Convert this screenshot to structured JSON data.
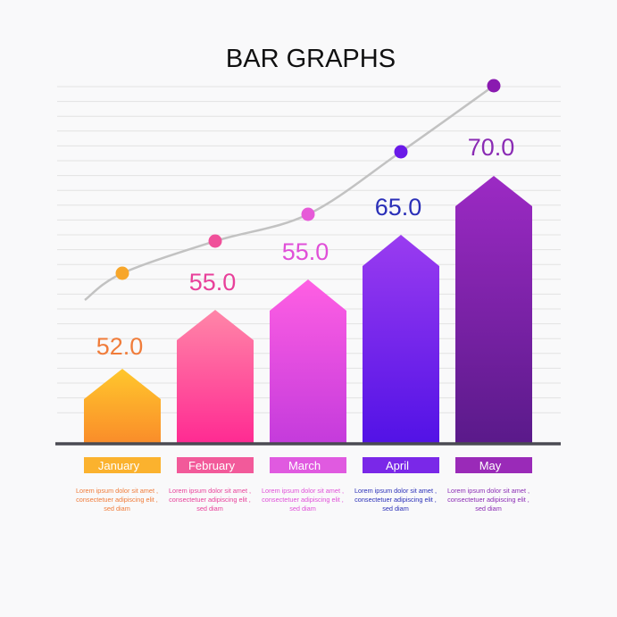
{
  "chart_data": {
    "type": "bar",
    "title": "BAR GRAPHS",
    "categories": [
      "January",
      "February",
      "March",
      "April",
      "May"
    ],
    "values": [
      52.0,
      55.0,
      55.0,
      65.0,
      70.0
    ],
    "value_labels": [
      "52.0",
      "55.0",
      "55.0",
      "65.0",
      "70.0"
    ],
    "trend_line": true,
    "descriptions": [
      [
        "Lorem ipsum dolor sit amet ,",
        "consectetuer adipiscing elit ,",
        "sed diam"
      ],
      [
        "Lorem ipsum dolor sit amet ,",
        "consectetuer adipiscing elit ,",
        "sed diam"
      ],
      [
        "Lorem ipsum dolor sit amet ,",
        "consectetuer adipiscing elit ,",
        "sed diam"
      ],
      [
        "Lorem ipsum dolor sit amet ,",
        "consectetuer adipiscing elit ,",
        "sed diam"
      ],
      [
        "Lorem ipsum dolor sit amet ,",
        "consectetuer adipiscing elit ,",
        "sed diam"
      ]
    ],
    "colors": {
      "bars": [
        [
          "#ffc72c",
          "#fa8c2a"
        ],
        [
          "#ff86a8",
          "#ff2a92"
        ],
        [
          "#ff5fe3",
          "#c43bdc"
        ],
        [
          "#9a3cf0",
          "#5212e6"
        ],
        [
          "#9c2ac4",
          "#5a1a8a"
        ]
      ],
      "labels": [
        "#f07c3a",
        "#e8409a",
        "#e04fd8",
        "#2a2fb8",
        "#8a2bb4"
      ],
      "dots": [
        "#f7a62a",
        "#f0509a",
        "#e65ad8",
        "#6a1ae8",
        "#8a1ab0"
      ],
      "category_boxes": [
        "#fbb22e",
        "#f25a9a",
        "#e05ae0",
        "#7a28e8",
        "#9a2ab8"
      ],
      "trend_line": "#c2c2c2",
      "grid": "#e2e2e2",
      "baseline": "#4a4a52"
    }
  }
}
